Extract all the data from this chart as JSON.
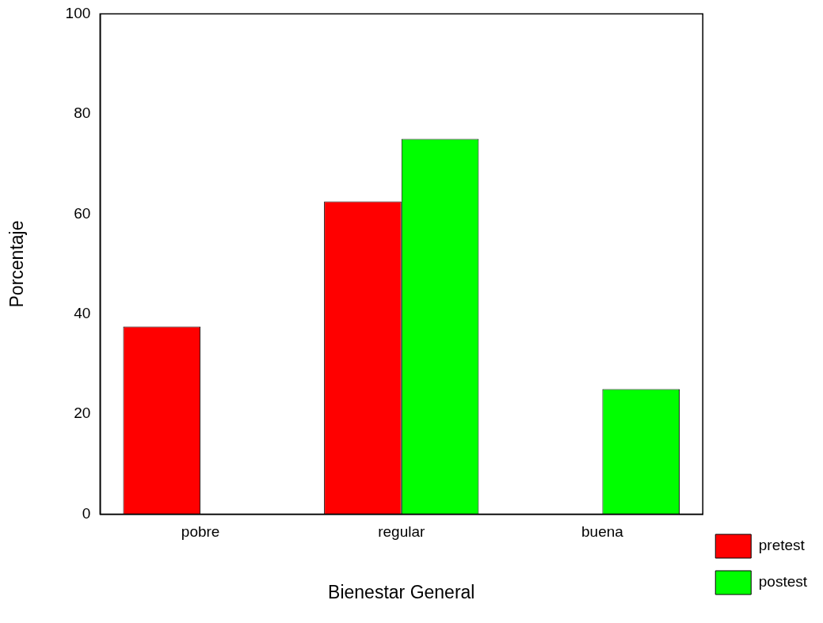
{
  "chart_data": {
    "type": "bar",
    "xlabel": "Bienestar General",
    "ylabel": "Porcentaje",
    "categories": [
      "pobre",
      "regular",
      "buena"
    ],
    "series": [
      {
        "name": "pretest",
        "color": "#ff0000",
        "values": [
          37.5,
          62.5,
          0
        ]
      },
      {
        "name": "postest",
        "color": "#00ff00",
        "values": [
          0,
          75,
          25
        ]
      }
    ],
    "ylim": [
      0,
      100
    ],
    "yticks": [
      0,
      20,
      40,
      60,
      80,
      100
    ],
    "grid": false,
    "legend": "bottom right"
  }
}
